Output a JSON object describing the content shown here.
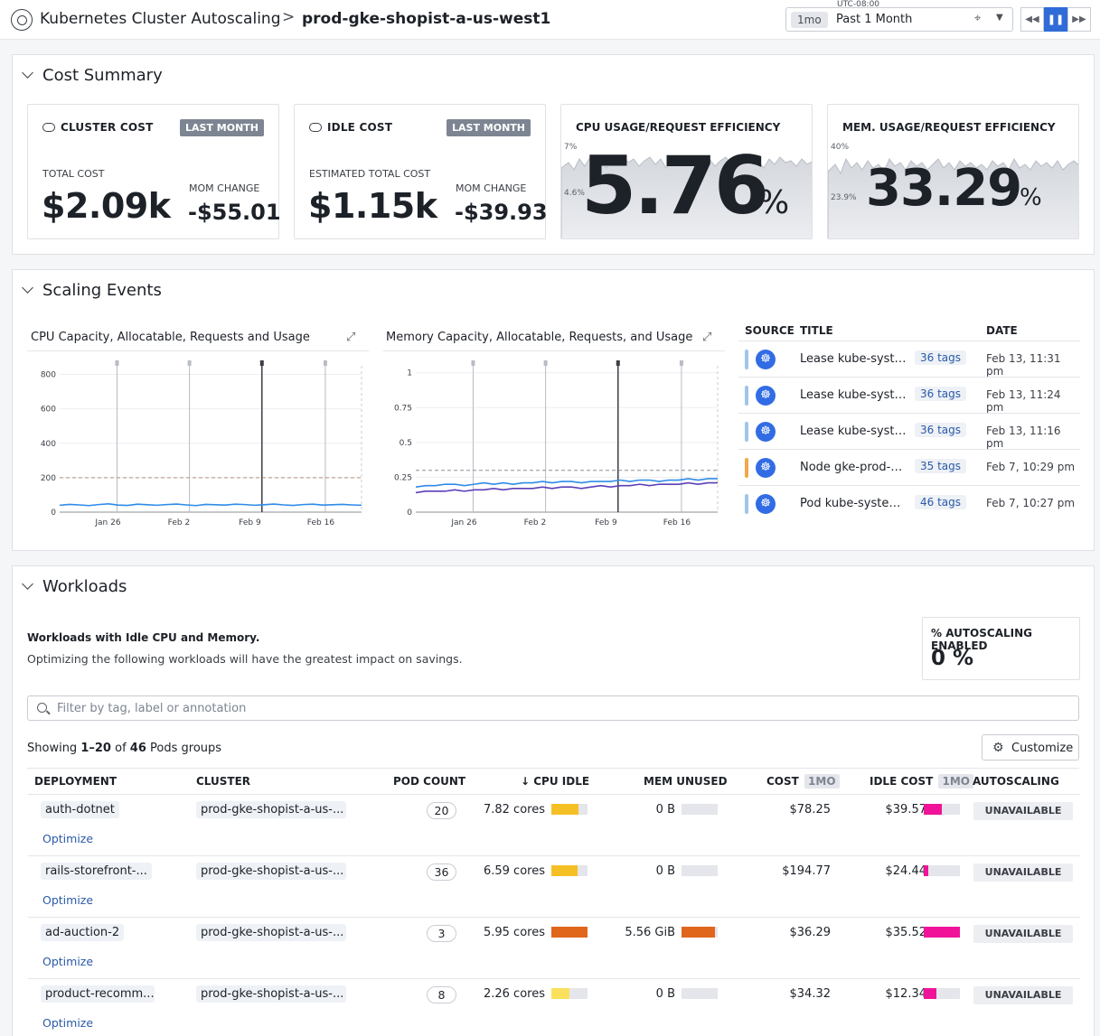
{
  "header": {
    "app_title": "Kubernetes Cluster Autoscaling",
    "separator": ">",
    "cluster_name": "prod-gke-shopist-a-us-west1",
    "timezone": "UTC-08:00",
    "time_chip": "1mo",
    "time_label": "Past 1 Month"
  },
  "cost_summary": {
    "heading": "Cost Summary",
    "cluster_cost": {
      "title": "CLUSTER COST",
      "badge": "LAST MONTH",
      "total_label": "TOTAL COST",
      "total_value": "$2.09k",
      "mom_label": "MOM CHANGE",
      "mom_value": "-$55.01"
    },
    "idle_cost": {
      "title": "IDLE COST",
      "badge": "LAST MONTH",
      "total_label": "ESTIMATED TOTAL COST",
      "total_value": "$1.15k",
      "mom_label": "MOM CHANGE",
      "mom_value": "-$39.93"
    },
    "cpu_eff": {
      "title": "CPU USAGE/REQUEST EFFICIENCY",
      "value": "5.76",
      "unit": "%",
      "axis_top": "7%",
      "axis_mid": "4.6%"
    },
    "mem_eff": {
      "title": "MEM. USAGE/REQUEST EFFICIENCY",
      "value": "33.29",
      "unit": "%",
      "axis_top": "40%",
      "axis_mid": "23.9%"
    }
  },
  "scaling": {
    "heading": "Scaling Events",
    "cpu_chart_title": "CPU Capacity, Allocatable, Requests and Usage",
    "mem_chart_title": "Memory Capacity, Allocatable, Requests, and Usage",
    "events_cols": {
      "source": "SOURCE",
      "title": "TITLE",
      "date": "DATE"
    },
    "events": [
      {
        "title": "Lease kube-syste...",
        "tags": "36 tags",
        "date": "Feb 13, 11:31 pm",
        "color": "#9fc5e8"
      },
      {
        "title": "Lease kube-syste...",
        "tags": "36 tags",
        "date": "Feb 13, 11:24 pm",
        "color": "#9fc5e8"
      },
      {
        "title": "Lease kube-syste...",
        "tags": "36 tags",
        "date": "Feb 13, 11:16 pm",
        "color": "#9fc5e8"
      },
      {
        "title": "Node gke-prod-g...",
        "tags": "35 tags",
        "date": "Feb 7, 10:29 pm",
        "color": "#f0a94c"
      },
      {
        "title": "Pod kube-system/...",
        "tags": "46 tags",
        "date": "Feb 7, 10:27 pm",
        "color": "#9fc5e8"
      }
    ]
  },
  "chart_data": [
    {
      "type": "line",
      "title": "CPU Capacity, Allocatable, Requests and Usage",
      "y_ticks": [
        "800",
        "600",
        "400",
        "200",
        "0"
      ],
      "ylim": [
        0,
        850
      ],
      "x_ticks": [
        "Jan 26",
        "Feb 2",
        "Feb 9",
        "Feb 16"
      ],
      "series": [
        {
          "values": [
            200,
            200,
            200,
            200,
            200,
            200,
            200,
            200,
            200,
            200,
            200,
            200,
            200,
            200,
            200,
            200,
            200,
            200,
            200,
            200,
            200,
            200,
            200,
            200,
            200,
            200,
            200,
            200,
            200,
            200,
            200,
            200
          ],
          "color": "#b3917a"
        },
        {
          "values": [
            40,
            45,
            42,
            38,
            44,
            48,
            41,
            39,
            46,
            43,
            40,
            44,
            47,
            42,
            38,
            45,
            43,
            41,
            46,
            44,
            40,
            43,
            47,
            42,
            39,
            44,
            46,
            41,
            43,
            45,
            42,
            40
          ],
          "color": "#2e8be8"
        }
      ]
    },
    {
      "type": "line",
      "title": "Memory Capacity, Allocatable, Requests, and Usage",
      "y_ticks": [
        "1",
        "0.75",
        "0.5",
        "0.25",
        "0"
      ],
      "ylim": [
        0,
        1.05
      ],
      "x_ticks": [
        "Jan 26",
        "Feb 2",
        "Feb 9",
        "Feb 16"
      ],
      "series": [
        {
          "values": [
            0.3,
            0.3,
            0.3,
            0.3,
            0.3,
            0.3,
            0.3,
            0.3,
            0.3,
            0.3,
            0.3,
            0.3,
            0.3,
            0.3,
            0.3,
            0.3,
            0.3,
            0.3,
            0.3,
            0.3,
            0.3,
            0.3,
            0.3,
            0.3,
            0.3,
            0.3,
            0.3,
            0.3,
            0.3,
            0.3,
            0.3,
            0.3
          ],
          "color": "#8c8f96"
        },
        {
          "values": [
            0.18,
            0.19,
            0.19,
            0.2,
            0.2,
            0.19,
            0.2,
            0.21,
            0.2,
            0.21,
            0.2,
            0.21,
            0.21,
            0.22,
            0.21,
            0.22,
            0.22,
            0.21,
            0.22,
            0.22,
            0.22,
            0.23,
            0.22,
            0.23,
            0.23,
            0.22,
            0.23,
            0.23,
            0.24,
            0.23,
            0.24,
            0.24
          ],
          "color": "#2e8be8"
        },
        {
          "values": [
            0.14,
            0.15,
            0.15,
            0.15,
            0.16,
            0.15,
            0.16,
            0.16,
            0.17,
            0.16,
            0.17,
            0.17,
            0.17,
            0.18,
            0.17,
            0.18,
            0.18,
            0.17,
            0.18,
            0.19,
            0.18,
            0.19,
            0.19,
            0.2,
            0.19,
            0.2,
            0.2,
            0.2,
            0.21,
            0.2,
            0.21,
            0.21
          ],
          "color": "#5b3fb8"
        }
      ]
    }
  ],
  "workloads": {
    "heading": "Workloads",
    "subheading": "Workloads with Idle CPU and Memory.",
    "description": "Optimizing the following workloads will have the greatest impact on savings.",
    "pct_label": "% AUTOSCALING ENABLED",
    "pct_value": "0 %",
    "filter_placeholder": "Filter by tag, label or annotation",
    "showing_prefix": "Showing",
    "showing_range": "1–20",
    "showing_of": "of",
    "showing_total": "46",
    "showing_suffix": "Pods groups",
    "customize_label": "Customize",
    "columns": {
      "deployment": "DEPLOYMENT",
      "cluster": "CLUSTER",
      "pod_count": "POD COUNT",
      "cpu_idle": "CPU IDLE",
      "mem_unused": "MEM UNUSED",
      "cost": "COST",
      "idle_cost": "IDLE COST",
      "autoscaling": "AUTOSCALING",
      "period": "1MO"
    },
    "rows": [
      {
        "deployment": "auth-dotnet",
        "optimize": "Optimize",
        "cluster": "prod-gke-shopist-a-us-...",
        "pods": "20",
        "cpu": "7.82 cores",
        "cpu_frac": 0.75,
        "cpu_color": "#f5c026",
        "mem": "0 B",
        "mem_frac": 0,
        "mem_color": "#e0661c",
        "cost": "$78.25",
        "idle_cost": "$39.57",
        "idle_frac": 0.5,
        "autoscaling": "UNAVAILABLE"
      },
      {
        "deployment": "rails-storefront-...",
        "optimize": "Optimize",
        "cluster": "prod-gke-shopist-a-us-...",
        "pods": "36",
        "cpu": "6.59 cores",
        "cpu_frac": 0.72,
        "cpu_color": "#f5c026",
        "mem": "0 B",
        "mem_frac": 0,
        "mem_color": "#e0661c",
        "cost": "$194.77",
        "idle_cost": "$24.44",
        "idle_frac": 0.12,
        "autoscaling": "UNAVAILABLE"
      },
      {
        "deployment": "ad-auction-2",
        "optimize": "Optimize",
        "cluster": "prod-gke-shopist-a-us-...",
        "pods": "3",
        "cpu": "5.95 cores",
        "cpu_frac": 1.0,
        "cpu_color": "#e0661c",
        "mem": "5.56 GiB",
        "mem_frac": 0.92,
        "mem_color": "#e0661c",
        "cost": "$36.29",
        "idle_cost": "$35.52",
        "idle_frac": 1.0,
        "autoscaling": "UNAVAILABLE"
      },
      {
        "deployment": "product-recomm...",
        "optimize": "Optimize",
        "cluster": "prod-gke-shopist-a-us-...",
        "pods": "8",
        "cpu": "2.26 cores",
        "cpu_frac": 0.5,
        "cpu_color": "#fbe05c",
        "mem": "0 B",
        "mem_frac": 0,
        "mem_color": "#e0661c",
        "cost": "$34.32",
        "idle_cost": "$12.34",
        "idle_frac": 0.35,
        "autoscaling": "UNAVAILABLE"
      }
    ]
  }
}
